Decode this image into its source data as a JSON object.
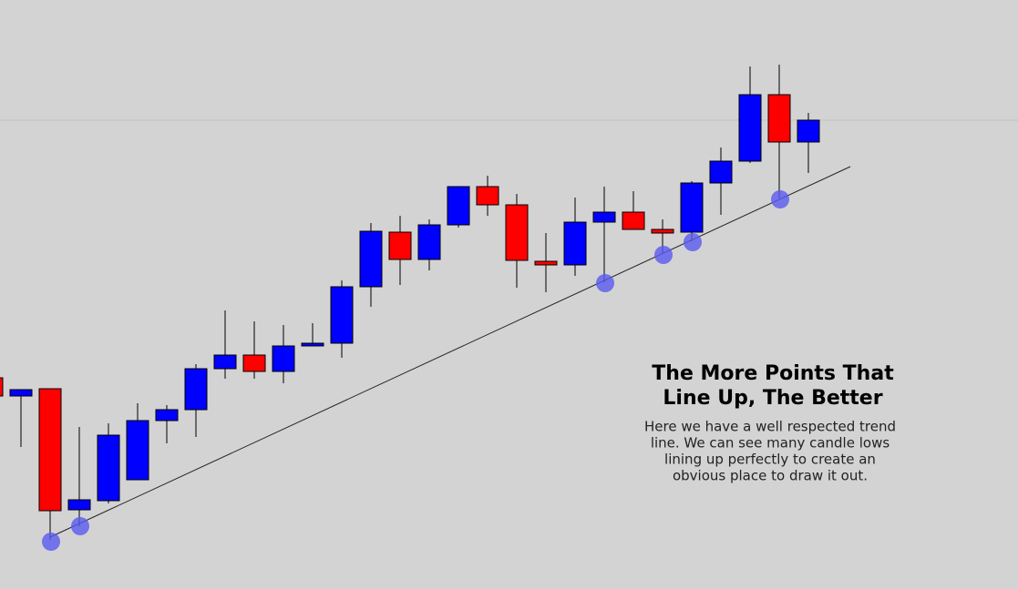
{
  "chart_data": {
    "type": "candlestick",
    "title": [
      "The More Points That",
      "Line Up, The Better"
    ],
    "text": [
      "Here we have a well respected trend",
      "line. We can see many candle lows",
      "lining up perfectly to create an",
      "obvious place to draw it out."
    ],
    "categories": [
      null,
      null,
      null,
      null,
      null,
      null,
      null,
      null,
      null,
      null,
      null,
      null,
      null,
      null,
      null,
      null,
      null,
      null,
      null,
      null,
      null,
      null,
      null,
      null,
      null,
      null,
      null,
      null,
      null
    ],
    "open": [
      232,
      212,
      220,
      87,
      97,
      120,
      185,
      197,
      242,
      257,
      239,
      267,
      270,
      332,
      392,
      362,
      400,
      442,
      422,
      360,
      356,
      403,
      414,
      395,
      392,
      446,
      470,
      543,
      491
    ],
    "high": [
      232,
      219,
      220,
      178,
      182,
      204,
      202,
      247,
      306,
      294,
      290,
      292,
      339,
      402,
      410,
      406,
      442,
      454,
      434,
      391,
      430,
      442,
      437,
      406,
      448,
      485,
      574,
      576,
      523
    ],
    "low": [
      212,
      156,
      54,
      69,
      94,
      120,
      160,
      167,
      231,
      231,
      226,
      267,
      254,
      310,
      334,
      350,
      397,
      410,
      331,
      326,
      344,
      337,
      395,
      369,
      382,
      411,
      468,
      429,
      457
    ],
    "close": [
      212,
      219,
      86,
      98,
      169,
      185,
      197,
      242,
      257,
      239,
      267,
      270,
      332,
      393,
      362,
      400,
      442,
      422,
      361,
      356,
      403,
      414,
      395,
      391,
      446,
      470,
      543,
      491,
      515
    ],
    "up_color": "#0000ff",
    "down_color": "#ff0000",
    "ylim": [
      0,
      647
    ]
  }
}
